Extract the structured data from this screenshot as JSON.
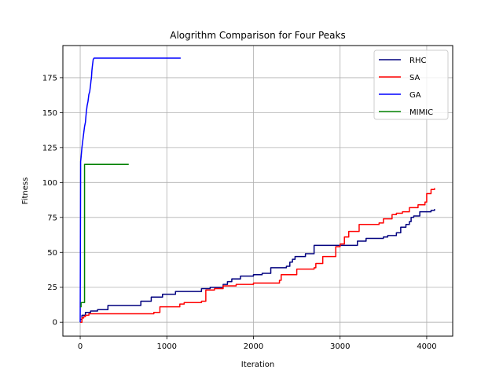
{
  "chart_data": {
    "type": "line",
    "title": "Alogrithm Comparison for Four Peaks",
    "xlabel": "Iteration",
    "ylabel": "Fitness",
    "xlim": [
      -200,
      4300
    ],
    "ylim": [
      -10,
      198
    ],
    "xticks": [
      0,
      1000,
      2000,
      3000,
      4000
    ],
    "yticks": [
      0,
      25,
      50,
      75,
      100,
      125,
      150,
      175
    ],
    "grid": true,
    "legend_position": "top-right",
    "series": [
      {
        "name": "RHC",
        "color": "#00007f",
        "step": true,
        "x": [
          0,
          20,
          60,
          120,
          200,
          320,
          700,
          820,
          950,
          1100,
          1400,
          1500,
          1650,
          1700,
          1750,
          1850,
          2000,
          2100,
          2200,
          2380,
          2420,
          2450,
          2480,
          2600,
          2700,
          3200,
          3300,
          3500,
          3550,
          3650,
          3700,
          3760,
          3800,
          3820,
          3850,
          3920,
          4050,
          4090
        ],
        "y": [
          2,
          5,
          7,
          8,
          9,
          12,
          15,
          18,
          20,
          22,
          24,
          25,
          27,
          29,
          31,
          33,
          34,
          35,
          39,
          40,
          43,
          45,
          47,
          49,
          55,
          58,
          60,
          61,
          62,
          64,
          68,
          70,
          72,
          75,
          76,
          79,
          80,
          81
        ]
      },
      {
        "name": "SA",
        "color": "#ff0000",
        "step": true,
        "x": [
          0,
          20,
          40,
          60,
          100,
          150,
          400,
          850,
          920,
          1100,
          1150,
          1200,
          1400,
          1450,
          1550,
          1650,
          1800,
          2000,
          2300,
          2320,
          2500,
          2700,
          2720,
          2800,
          2950,
          3000,
          3050,
          3100,
          3220,
          3450,
          3500,
          3600,
          3650,
          3700,
          3720,
          3800,
          3900,
          3980,
          4000,
          4050,
          4090
        ],
        "y": [
          0,
          3,
          4,
          5,
          6,
          6,
          6,
          7,
          11,
          11,
          13,
          14,
          15,
          23,
          24,
          26,
          27,
          28,
          30,
          34,
          38,
          39,
          42,
          47,
          54,
          56,
          61,
          65,
          70,
          71,
          74,
          77,
          78,
          78,
          79,
          82,
          84,
          86,
          92,
          95,
          96
        ]
      },
      {
        "name": "GA",
        "color": "#0000ff",
        "step": false,
        "x": [
          0,
          5,
          10,
          20,
          30,
          40,
          50,
          60,
          70,
          80,
          90,
          100,
          110,
          120,
          125,
          130,
          135,
          140,
          150,
          160,
          180,
          1160
        ],
        "y": [
          0,
          115,
          118,
          125,
          130,
          135,
          140,
          143,
          150,
          155,
          158,
          163,
          165,
          170,
          173,
          175,
          180,
          183,
          188,
          189,
          189,
          189
        ]
      },
      {
        "name": "MIMIC",
        "color": "#008000",
        "step": true,
        "x": [
          0,
          10,
          50,
          560
        ],
        "y": [
          11,
          14,
          113,
          113
        ]
      }
    ]
  }
}
